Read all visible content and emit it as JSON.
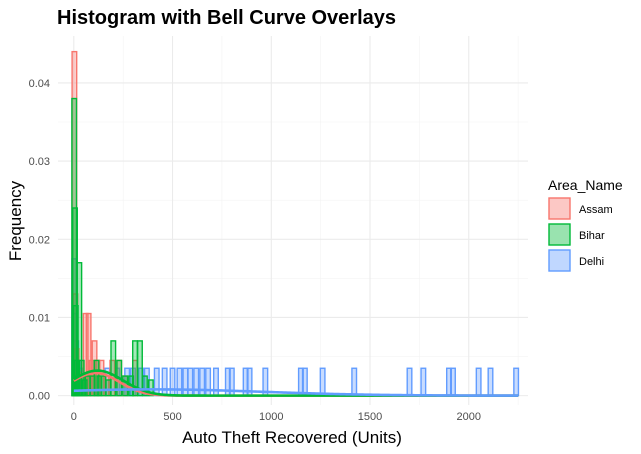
{
  "chart_data": {
    "type": "histogram",
    "title": "Histogram with Bell Curve Overlays",
    "xlabel": "Auto Theft Recovered (Units)",
    "ylabel": "Frequency",
    "xlim": [
      -80,
      2300
    ],
    "ylim": [
      -0.0012,
      0.046
    ],
    "x_ticks": [
      0,
      500,
      1000,
      1500,
      2000
    ],
    "y_ticks": [
      0.0,
      0.01,
      0.02,
      0.03,
      0.04
    ],
    "y_tick_labels": [
      "0.00",
      "0.01",
      "0.02",
      "0.03",
      "0.04"
    ],
    "grid": true,
    "legend": {
      "title": "Area_Name",
      "position": "right"
    },
    "series": [
      {
        "name": "Assam",
        "color": "#F8766D",
        "bins": [
          {
            "x": 3,
            "y": 0.044
          },
          {
            "x": 8,
            "y": 0.013
          },
          {
            "x": 14,
            "y": 0.006
          },
          {
            "x": 22,
            "y": 0.003
          },
          {
            "x": 35,
            "y": 0.002
          },
          {
            "x": 48,
            "y": 0.0025
          },
          {
            "x": 60,
            "y": 0.0105
          },
          {
            "x": 75,
            "y": 0.0105
          },
          {
            "x": 90,
            "y": 0.0045
          },
          {
            "x": 105,
            "y": 0.007
          },
          {
            "x": 120,
            "y": 0.0045
          },
          {
            "x": 140,
            "y": 0.0045
          },
          {
            "x": 165,
            "y": 0.0025
          },
          {
            "x": 195,
            "y": 0.0045
          },
          {
            "x": 230,
            "y": 0.0045
          },
          {
            "x": 260,
            "y": 0.0025
          },
          {
            "x": 310,
            "y": 0.0045
          }
        ],
        "curve": {
          "mean": 110,
          "sd": 120,
          "scale": 0.0029
        }
      },
      {
        "name": "Bihar",
        "color": "#00BA38",
        "bins": [
          {
            "x": 2,
            "y": 0.038
          },
          {
            "x": 6,
            "y": 0.024
          },
          {
            "x": 10,
            "y": 0.0115
          },
          {
            "x": 15,
            "y": 0.0045
          },
          {
            "x": 20,
            "y": 0.0025
          },
          {
            "x": 28,
            "y": 0.017
          },
          {
            "x": 40,
            "y": 0.0045
          },
          {
            "x": 55,
            "y": 0.002
          },
          {
            "x": 70,
            "y": 0.0025
          },
          {
            "x": 95,
            "y": 0.0025
          },
          {
            "x": 115,
            "y": 0.0045
          },
          {
            "x": 130,
            "y": 0.0025
          },
          {
            "x": 150,
            "y": 0.0025
          },
          {
            "x": 175,
            "y": 0.002
          },
          {
            "x": 200,
            "y": 0.007
          },
          {
            "x": 230,
            "y": 0.0045
          },
          {
            "x": 260,
            "y": 0.0025
          },
          {
            "x": 290,
            "y": 0.0025
          },
          {
            "x": 310,
            "y": 0.007
          },
          {
            "x": 335,
            "y": 0.007
          },
          {
            "x": 360,
            "y": 0.0025
          },
          {
            "x": 390,
            "y": 0.002
          }
        ],
        "curve": {
          "mean": 120,
          "sd": 130,
          "scale": 0.0032
        }
      },
      {
        "name": "Delhi",
        "color": "#619CFF",
        "bins": [
          {
            "x": 2,
            "y": 0.0175
          },
          {
            "x": 6,
            "y": 0.0105
          },
          {
            "x": 12,
            "y": 0.007
          },
          {
            "x": 20,
            "y": 0.0045
          },
          {
            "x": 32,
            "y": 0.0035
          },
          {
            "x": 50,
            "y": 0.0025
          },
          {
            "x": 80,
            "y": 0.0025
          },
          {
            "x": 120,
            "y": 0.0025
          },
          {
            "x": 170,
            "y": 0.0035
          },
          {
            "x": 220,
            "y": 0.0035
          },
          {
            "x": 270,
            "y": 0.0035
          },
          {
            "x": 300,
            "y": 0.0035
          },
          {
            "x": 340,
            "y": 0.0035
          },
          {
            "x": 370,
            "y": 0.0035
          },
          {
            "x": 420,
            "y": 0.0035
          },
          {
            "x": 460,
            "y": 0.0035
          },
          {
            "x": 500,
            "y": 0.0035
          },
          {
            "x": 535,
            "y": 0.0035
          },
          {
            "x": 565,
            "y": 0.0035
          },
          {
            "x": 590,
            "y": 0.0035
          },
          {
            "x": 620,
            "y": 0.0035
          },
          {
            "x": 650,
            "y": 0.0035
          },
          {
            "x": 680,
            "y": 0.0035
          },
          {
            "x": 720,
            "y": 0.0035
          },
          {
            "x": 780,
            "y": 0.0035
          },
          {
            "x": 800,
            "y": 0.0035
          },
          {
            "x": 870,
            "y": 0.0035
          },
          {
            "x": 890,
            "y": 0.0035
          },
          {
            "x": 970,
            "y": 0.0035
          },
          {
            "x": 1150,
            "y": 0.0035
          },
          {
            "x": 1170,
            "y": 0.0035
          },
          {
            "x": 1260,
            "y": 0.0035
          },
          {
            "x": 1420,
            "y": 0.0035
          },
          {
            "x": 1700,
            "y": 0.0035
          },
          {
            "x": 1770,
            "y": 0.0035
          },
          {
            "x": 1900,
            "y": 0.0035
          },
          {
            "x": 1920,
            "y": 0.0035
          },
          {
            "x": 2050,
            "y": 0.0035
          },
          {
            "x": 2110,
            "y": 0.0035
          },
          {
            "x": 2240,
            "y": 0.0035
          }
        ],
        "curve": {
          "mean": 400,
          "sd": 560,
          "scale": 0.0008
        }
      }
    ]
  }
}
